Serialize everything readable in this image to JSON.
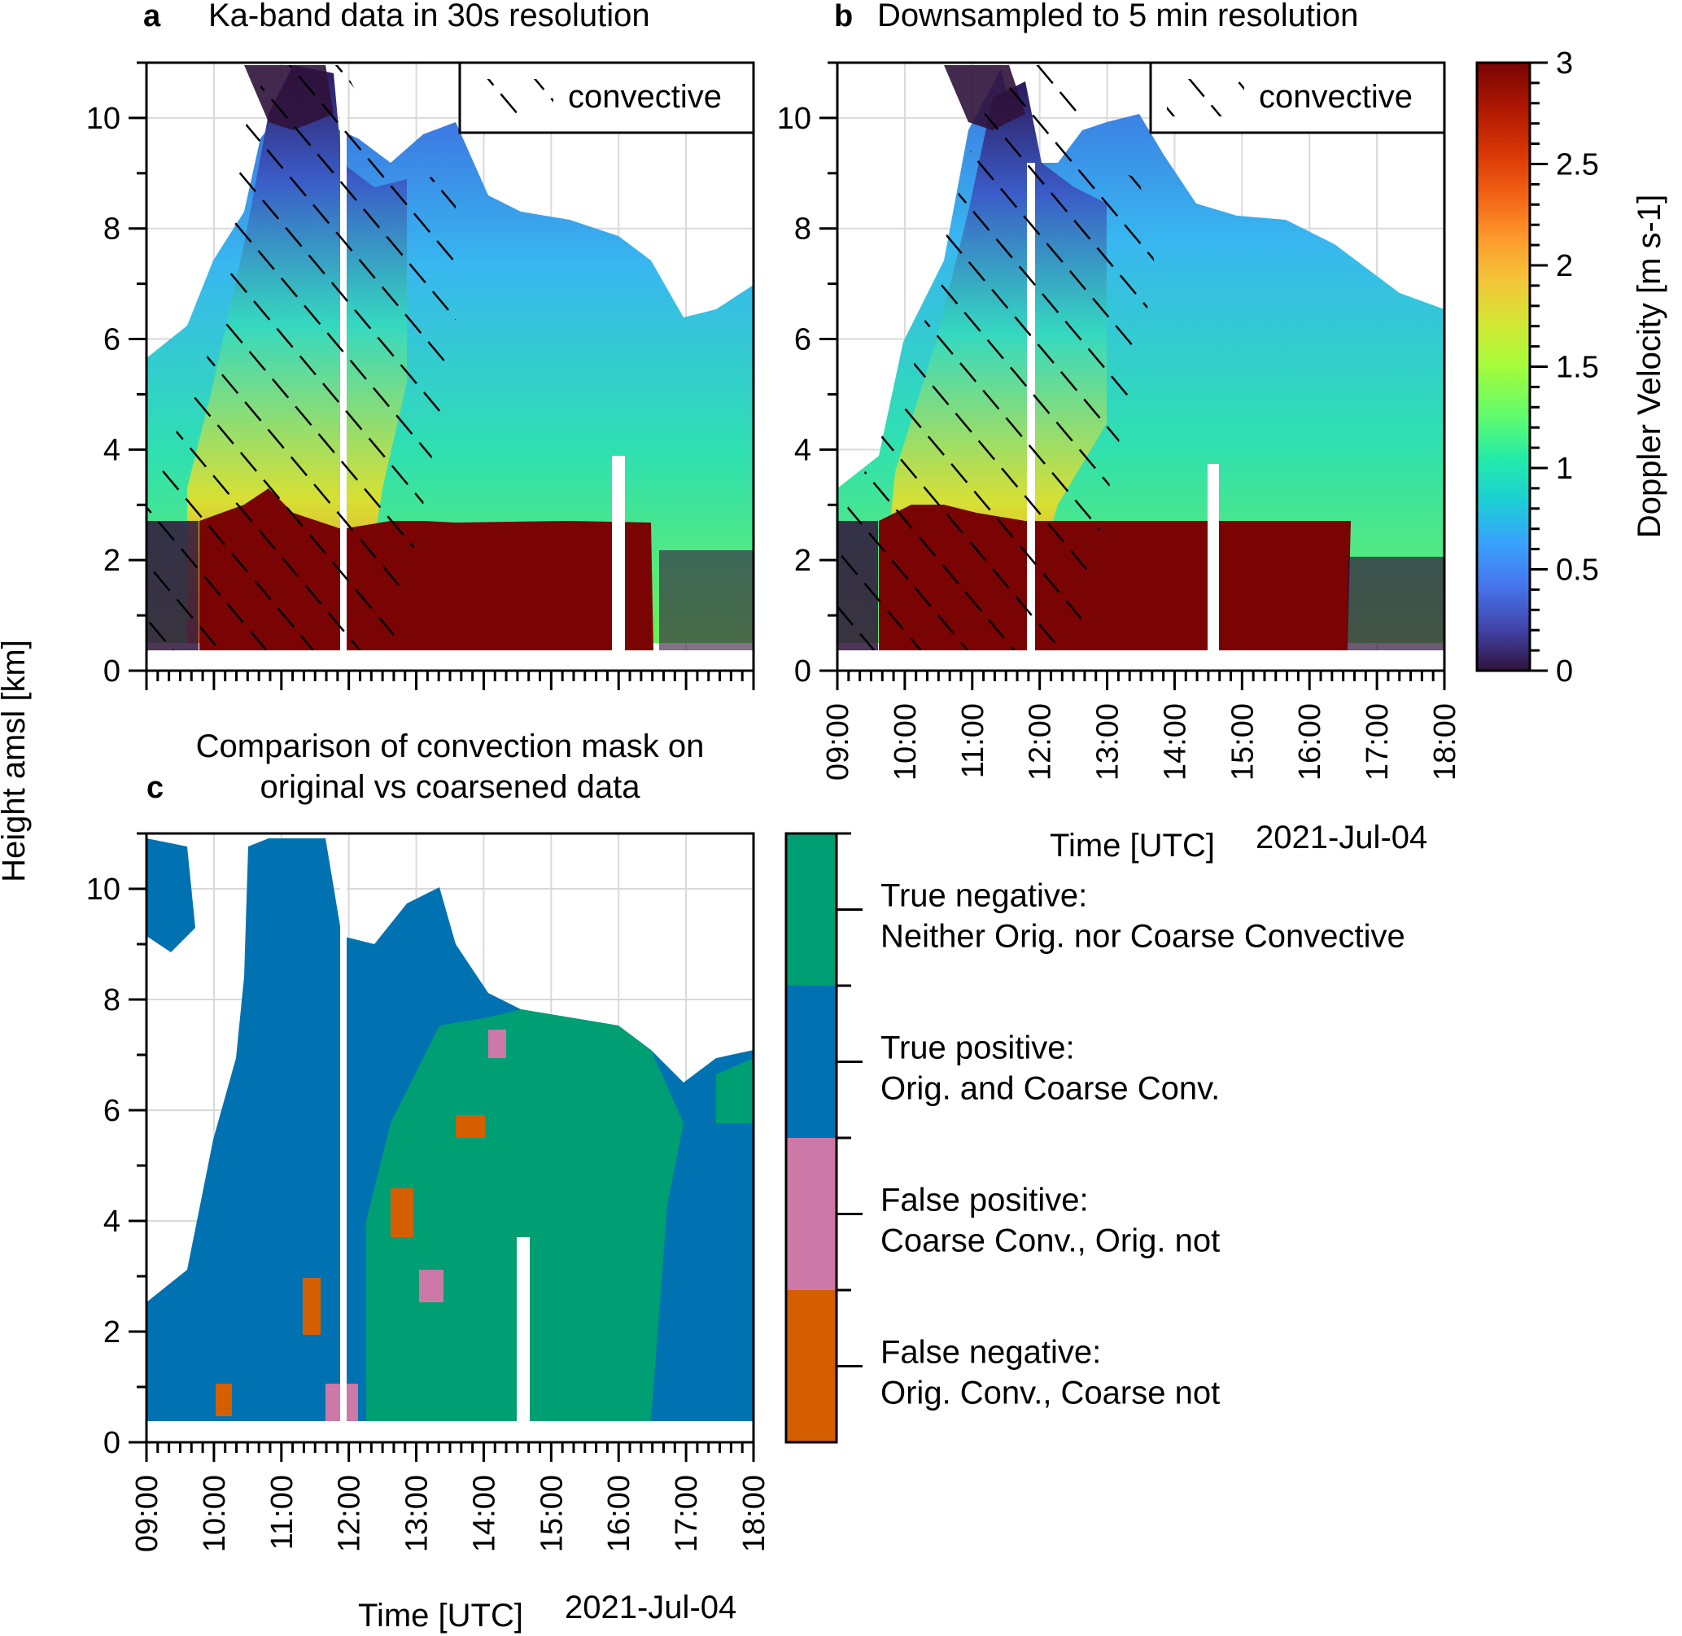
{
  "chart_data": [
    {
      "panel": "a",
      "type": "heatmap",
      "title": "Ka-band data in 30s resolution",
      "legend": {
        "label": "convective",
        "placement": "top-right"
      },
      "x": {
        "range": [
          "09:00",
          "18:00"
        ],
        "ticks": [
          "09:00",
          "10:00",
          "11:00",
          "12:00",
          "13:00",
          "14:00",
          "15:00",
          "16:00",
          "17:00",
          "18:00"
        ]
      },
      "y": {
        "range": [
          0,
          11
        ],
        "ticks": [
          0,
          2,
          4,
          6,
          8,
          10
        ]
      },
      "grid": true
    },
    {
      "panel": "b",
      "type": "heatmap",
      "title": "Downsampled to 5 min resolution",
      "legend": {
        "label": "convective",
        "placement": "top-right"
      },
      "x": {
        "range": [
          "09:00",
          "18:00"
        ],
        "ticks": [
          "09:00",
          "10:00",
          "11:00",
          "12:00",
          "13:00",
          "14:00",
          "15:00",
          "16:00",
          "17:00",
          "18:00"
        ],
        "label": "Time [UTC]",
        "date": "2021-Jul-04"
      },
      "y": {
        "range": [
          0,
          11
        ],
        "ticks": [
          0,
          2,
          4,
          6,
          8,
          10
        ]
      },
      "colorbar": {
        "label": "Doppler Velocity [m s-1]",
        "range": [
          0,
          3
        ],
        "ticks": [
          "0",
          "0.5",
          "1",
          "1.5",
          "2",
          "2.5",
          "3"
        ]
      },
      "grid": true
    },
    {
      "panel": "c",
      "type": "heatmap",
      "title_line1": "Comparison of convection mask on",
      "title_line2": "original vs coarsened data",
      "x": {
        "range": [
          "09:00",
          "18:00"
        ],
        "ticks": [
          "09:00",
          "10:00",
          "11:00",
          "12:00",
          "13:00",
          "14:00",
          "15:00",
          "16:00",
          "17:00",
          "18:00"
        ],
        "label": "Time [UTC]",
        "date": "2021-Jul-04"
      },
      "y": {
        "range": [
          0,
          11
        ],
        "ticks": [
          0,
          2,
          4,
          6,
          8,
          10
        ]
      },
      "categories": [
        {
          "name": "True negative:",
          "desc": "Neither Orig. nor Coarse Convective",
          "color": "#009e73"
        },
        {
          "name": "True positive:",
          "desc": "Orig. and Coarse Conv.",
          "color": "#0072b2"
        },
        {
          "name": "False positive:",
          "desc": "Coarse Conv., Orig. not",
          "color": "#cc79a7"
        },
        {
          "name": "False negative:",
          "desc": "Orig. Conv., Coarse not",
          "color": "#d55e00"
        }
      ],
      "grid": true
    }
  ],
  "shared_ylabel": "Height amsl [km]",
  "colors": {
    "turbo_dark": "#30123b",
    "turbo_blue": "#4686fb",
    "turbo_cyan": "#1ae4b6",
    "turbo_green": "#a2fc3c",
    "turbo_yellow": "#fabb39",
    "turbo_orange": "#e4460a",
    "turbo_red": "#7a0403"
  }
}
